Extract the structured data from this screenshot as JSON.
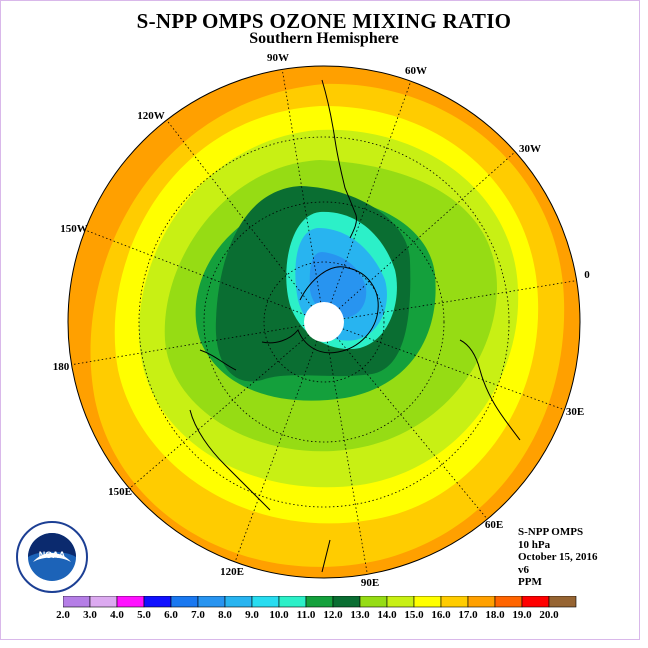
{
  "title": "S-NPP OMPS OZONE MIXING RATIO",
  "subtitle": "Southern Hemisphere",
  "longitude_labels": [
    "90W",
    "60W",
    "30W",
    "0",
    "30E",
    "60E",
    "90E",
    "120E",
    "150E",
    "180",
    "150W",
    "120W"
  ],
  "info": {
    "instrument": "S-NPP OMPS",
    "pressure_level": "10 hPa",
    "date": "October 15, 2016",
    "version": "v6",
    "units": "PPM"
  },
  "logo": {
    "name": "noaa-logo",
    "text": "NOAA"
  },
  "colorbar": {
    "labels": [
      "2.0",
      "3.0",
      "4.0",
      "5.0",
      "6.0",
      "7.0",
      "8.0",
      "9.0",
      "10.0",
      "11.0",
      "12.0",
      "13.0",
      "14.0",
      "15.0",
      "16.0",
      "17.0",
      "18.0",
      "19.0",
      "20.0"
    ],
    "colors": [
      "#b57ee6",
      "#dcaaf0",
      "#ff10ff",
      "#1010ff",
      "#1a78f0",
      "#2894f0",
      "#28b4f0",
      "#28dcf0",
      "#2cf0c8",
      "#14a03c",
      "#0a6e32",
      "#96dc14",
      "#c8f014",
      "#ffff00",
      "#ffcc00",
      "#ffa000",
      "#ff6400",
      "#ff0000",
      "#966432"
    ]
  },
  "field_colors": {
    "c9": "#2cf0c8",
    "c8": "#28b4f0",
    "c7": "#2894f0",
    "c11": "#14a03c",
    "c12": "#0a6e32",
    "c13": "#96dc14",
    "c14": "#c8f014",
    "c15": "#ffff00",
    "c16": "#ffcc00",
    "c17": "#ffa000",
    "pole": "#ffffff"
  }
}
